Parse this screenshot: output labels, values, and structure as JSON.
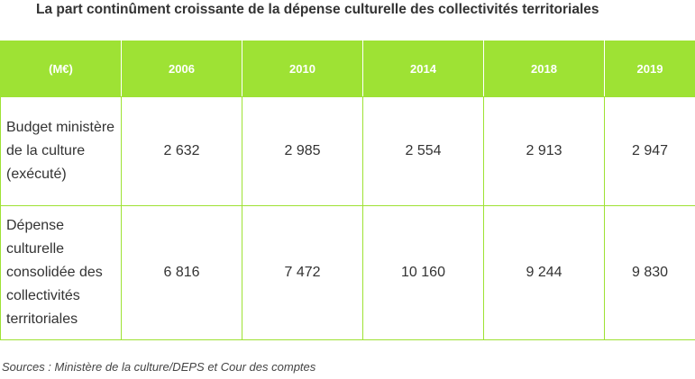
{
  "title": "La part continûment croissante de la dépense culturelle des collectivités territoriales",
  "table": {
    "header": [
      "(M€)",
      "2006",
      "2010",
      "2014",
      "2018",
      "2019"
    ],
    "rows": [
      {
        "label": "Budget ministère de la culture (exécuté)",
        "values": [
          "2 632",
          "2 985",
          "2 554",
          "2 913",
          "2 947"
        ]
      },
      {
        "label": "Dépense culturelle consolidée des collectivités territoriales",
        "values": [
          "6 816",
          "7 472",
          "10 160",
          "9 244",
          "9 830"
        ]
      }
    ]
  },
  "source": "Sources : Ministère de la culture/DEPS et Cour des comptes",
  "colors": {
    "header_background": "#9ee234",
    "header_text": "#ffffff",
    "border": "#9ee234",
    "text": "#333333"
  }
}
